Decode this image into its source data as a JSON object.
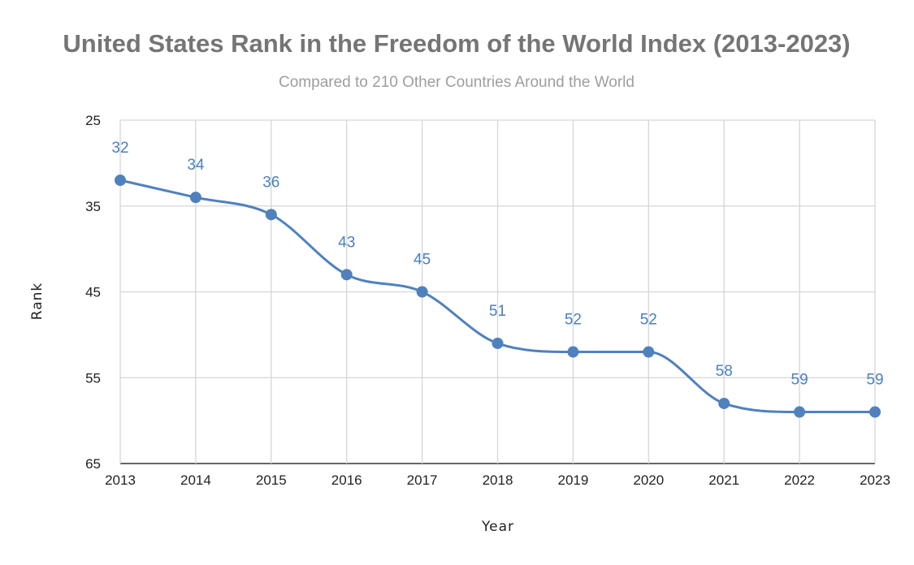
{
  "chart_data": {
    "type": "line",
    "title": "United States Rank in the Freedom of the World Index (2013-2023)",
    "subtitle": "Compared to 210 Other Countries Around the World",
    "xlabel": "Year",
    "ylabel": "Rank",
    "categories": [
      "2013",
      "2014",
      "2015",
      "2016",
      "2017",
      "2018",
      "2019",
      "2020",
      "2021",
      "2022",
      "2023"
    ],
    "series": [
      {
        "name": "Rank",
        "values": [
          32,
          34,
          36,
          43,
          45,
          51,
          52,
          52,
          58,
          59,
          59
        ],
        "labels": [
          "32",
          "34",
          "36",
          "43",
          "45",
          "51",
          "52",
          "52",
          "58",
          "59",
          "59"
        ]
      }
    ],
    "ylim": [
      25,
      65
    ],
    "y_inverted": true,
    "y_ticks": [
      25,
      35,
      45,
      55,
      65
    ],
    "y_tick_labels": [
      "25",
      "35",
      "45",
      "55",
      "65"
    ],
    "grid": true,
    "legend": "none",
    "colors": {
      "line": "#4f81bd",
      "marker": "#4f81bd",
      "label": "#4a7fc1"
    }
  }
}
